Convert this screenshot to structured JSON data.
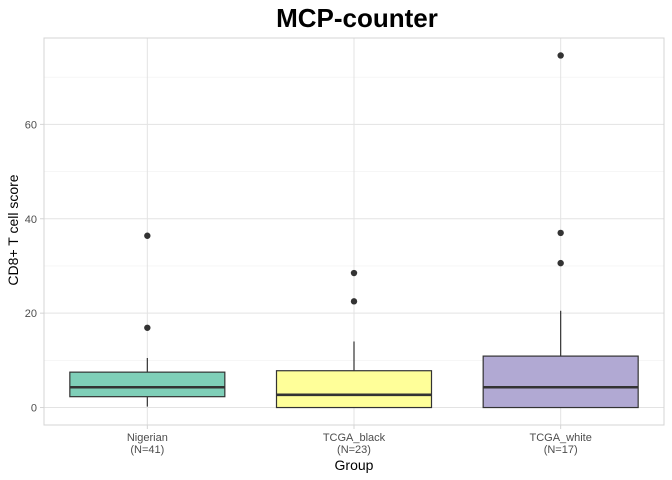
{
  "chart_data": {
    "type": "boxplot",
    "title": "MCP-counter",
    "xlabel": "Group",
    "ylabel": "CD8+ T cell score",
    "ylim": [
      -3.7,
      78.3
    ],
    "yticks": [
      0,
      20,
      40,
      60
    ],
    "grid": true,
    "groups": [
      {
        "name": "Nigerian",
        "label_line1": "Nigerian",
        "label_line2": "(N=41)",
        "color": "#7fcfb8",
        "min": 0.2,
        "q1": 2.3,
        "median": 4.3,
        "q3": 7.5,
        "max": 10.5,
        "outliers": [
          36.4,
          16.9
        ]
      },
      {
        "name": "TCGA_black",
        "label_line1": "TCGA_black",
        "label_line2": "(N=23)",
        "color": "#ffff99",
        "min": 0.0,
        "q1": 0.0,
        "median": 2.7,
        "q3": 7.8,
        "max": 14.0,
        "outliers": [
          28.5,
          22.5
        ]
      },
      {
        "name": "TCGA_white",
        "label_line1": "TCGA_white",
        "label_line2": "(N=17)",
        "color": "#b1a9d3",
        "min": 0.0,
        "q1": 0.0,
        "median": 4.3,
        "q3": 10.9,
        "max": 20.5,
        "outliers": [
          74.6,
          37.0,
          30.6
        ]
      }
    ]
  }
}
